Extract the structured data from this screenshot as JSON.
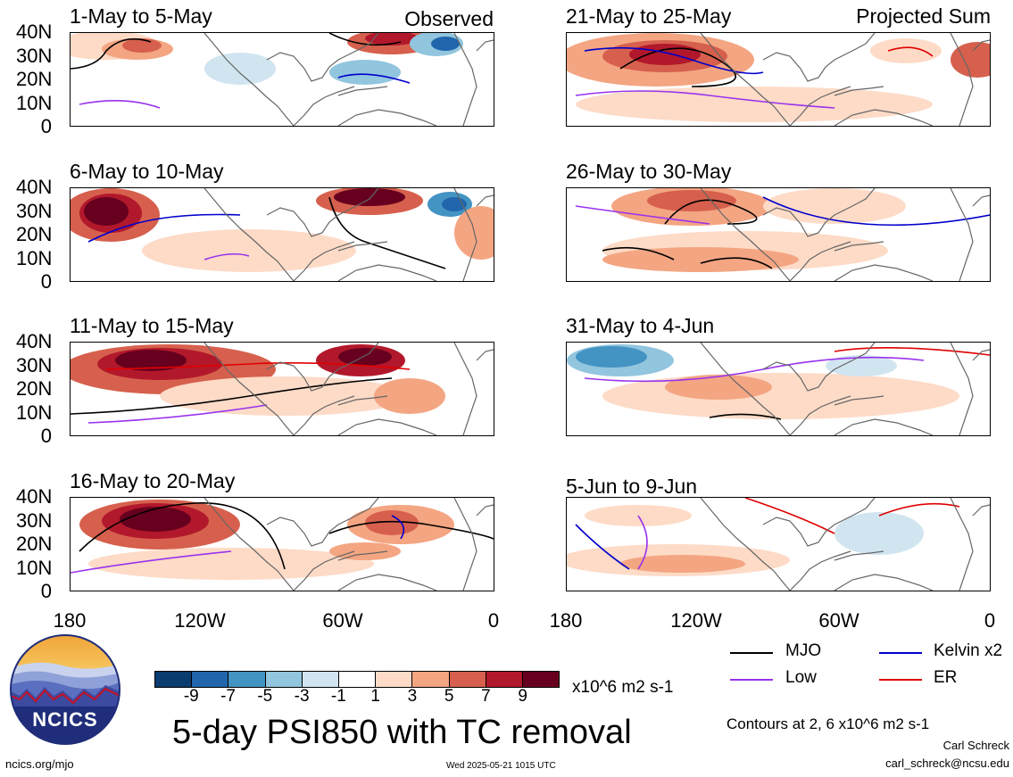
{
  "left_titles": [
    "1-May to 5-May",
    "6-May to 10-May",
    "11-May to 15-May",
    "16-May to 20-May"
  ],
  "right_titles": [
    "21-May to 25-May",
    "26-May to 30-May",
    "31-May to 4-Jun",
    "5-Jun to 9-Jun"
  ],
  "corner_labels": {
    "left": "Observed",
    "right": "Projected Sum"
  },
  "y_ticks": [
    "40N",
    "30N",
    "20N",
    "10N",
    "0"
  ],
  "x_ticks": [
    "180",
    "120W",
    "60W",
    "0"
  ],
  "colorbar": {
    "labels": [
      "-9",
      "-7",
      "-5",
      "-3",
      "-1",
      "1",
      "3",
      "5",
      "7",
      "9"
    ],
    "colors": [
      "#0b3c6f",
      "#2166ac",
      "#4393c3",
      "#92c5de",
      "#d1e5f0",
      "#ffffff",
      "#fddbc7",
      "#f4a582",
      "#d6604d",
      "#b2182b",
      "#67001f"
    ],
    "units": "x10^6 m2 s-1"
  },
  "title": "5-day PSI850 with TC removal",
  "legend": [
    {
      "label": "MJO",
      "color": "#000000"
    },
    {
      "label": "Kelvin x2",
      "color": "#0000cc"
    },
    {
      "label": "Low",
      "color": "#9932ee"
    },
    {
      "label": "ER",
      "color": "#e00000"
    }
  ],
  "contour_note": "Contours at 2, 6 x10^6 m2 s-1",
  "author": "Carl Schreck",
  "email": "carl_schreck@ncsu.edu",
  "site": "ncics.org/mjo",
  "timestamp": "Wed 2025-05-21 1015 UTC",
  "logo_text": "NCICS"
}
